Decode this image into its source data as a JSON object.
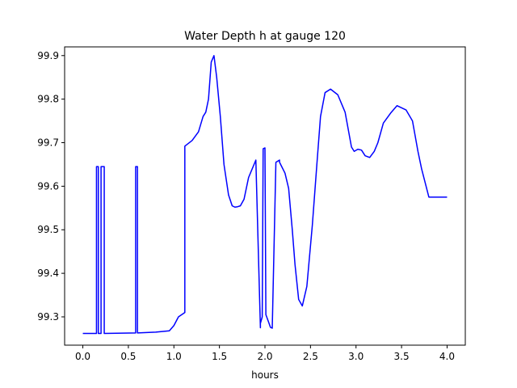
{
  "chart_data": {
    "type": "line",
    "title": "Water Depth h at gauge 120",
    "xlabel": "hours",
    "ylabel": "",
    "xlim": [
      -0.2,
      4.2
    ],
    "ylim": [
      99.235,
      99.92
    ],
    "xticks": [
      0.0,
      0.5,
      1.0,
      1.5,
      2.0,
      2.5,
      3.0,
      3.5,
      4.0
    ],
    "xtick_labels": [
      "0.0",
      "0.5",
      "1.0",
      "1.5",
      "2.0",
      "2.5",
      "3.0",
      "3.5",
      "4.0"
    ],
    "yticks": [
      99.3,
      99.4,
      99.5,
      99.6,
      99.7,
      99.8,
      99.9
    ],
    "ytick_labels": [
      "99.3",
      "99.4",
      "99.5",
      "99.6",
      "99.7",
      "99.8",
      "99.9"
    ],
    "grid": false,
    "legend": "none",
    "series": [
      {
        "color": "#0000ff",
        "x": [
          0.0,
          0.15,
          0.15,
          0.17,
          0.17,
          0.2,
          0.2,
          0.235,
          0.235,
          0.58,
          0.58,
          0.6,
          0.6,
          0.8,
          0.95,
          1.0,
          1.05,
          1.12,
          1.12,
          1.2,
          1.27,
          1.32,
          1.35,
          1.38,
          1.41,
          1.44,
          1.47,
          1.51,
          1.55,
          1.6,
          1.64,
          1.67,
          1.7,
          1.73,
          1.77,
          1.82,
          1.9,
          1.95,
          1.95,
          1.97,
          1.98,
          2.0,
          2.01,
          2.04,
          2.06,
          2.08,
          2.12,
          2.16,
          2.16,
          2.22,
          2.26,
          2.3,
          2.33,
          2.37,
          2.41,
          2.46,
          2.52,
          2.57,
          2.61,
          2.66,
          2.72,
          2.8,
          2.88,
          2.95,
          2.98,
          3.02,
          3.06,
          3.1,
          3.15,
          3.2,
          3.24,
          3.3,
          3.38,
          3.45,
          3.55,
          3.62,
          3.68,
          3.72,
          3.8,
          3.88,
          3.95,
          4.0
        ],
        "y": [
          99.262,
          99.262,
          99.645,
          99.645,
          99.262,
          99.262,
          99.645,
          99.645,
          99.262,
          99.263,
          99.645,
          99.645,
          99.263,
          99.265,
          99.268,
          99.28,
          99.3,
          99.31,
          99.692,
          99.705,
          99.725,
          99.76,
          99.77,
          99.8,
          99.885,
          99.9,
          99.85,
          99.76,
          99.65,
          99.58,
          99.555,
          99.552,
          99.553,
          99.555,
          99.57,
          99.62,
          99.66,
          99.275,
          99.285,
          99.3,
          99.686,
          99.688,
          99.305,
          99.288,
          99.276,
          99.274,
          99.655,
          99.66,
          99.655,
          99.63,
          99.595,
          99.5,
          99.42,
          99.34,
          99.325,
          99.37,
          99.51,
          99.65,
          99.76,
          99.815,
          99.823,
          99.81,
          99.77,
          99.69,
          99.68,
          99.685,
          99.683,
          99.67,
          99.666,
          99.68,
          99.7,
          99.745,
          99.768,
          99.785,
          99.775,
          99.75,
          99.68,
          99.64,
          99.575,
          99.575,
          99.575,
          99.575
        ]
      }
    ]
  }
}
